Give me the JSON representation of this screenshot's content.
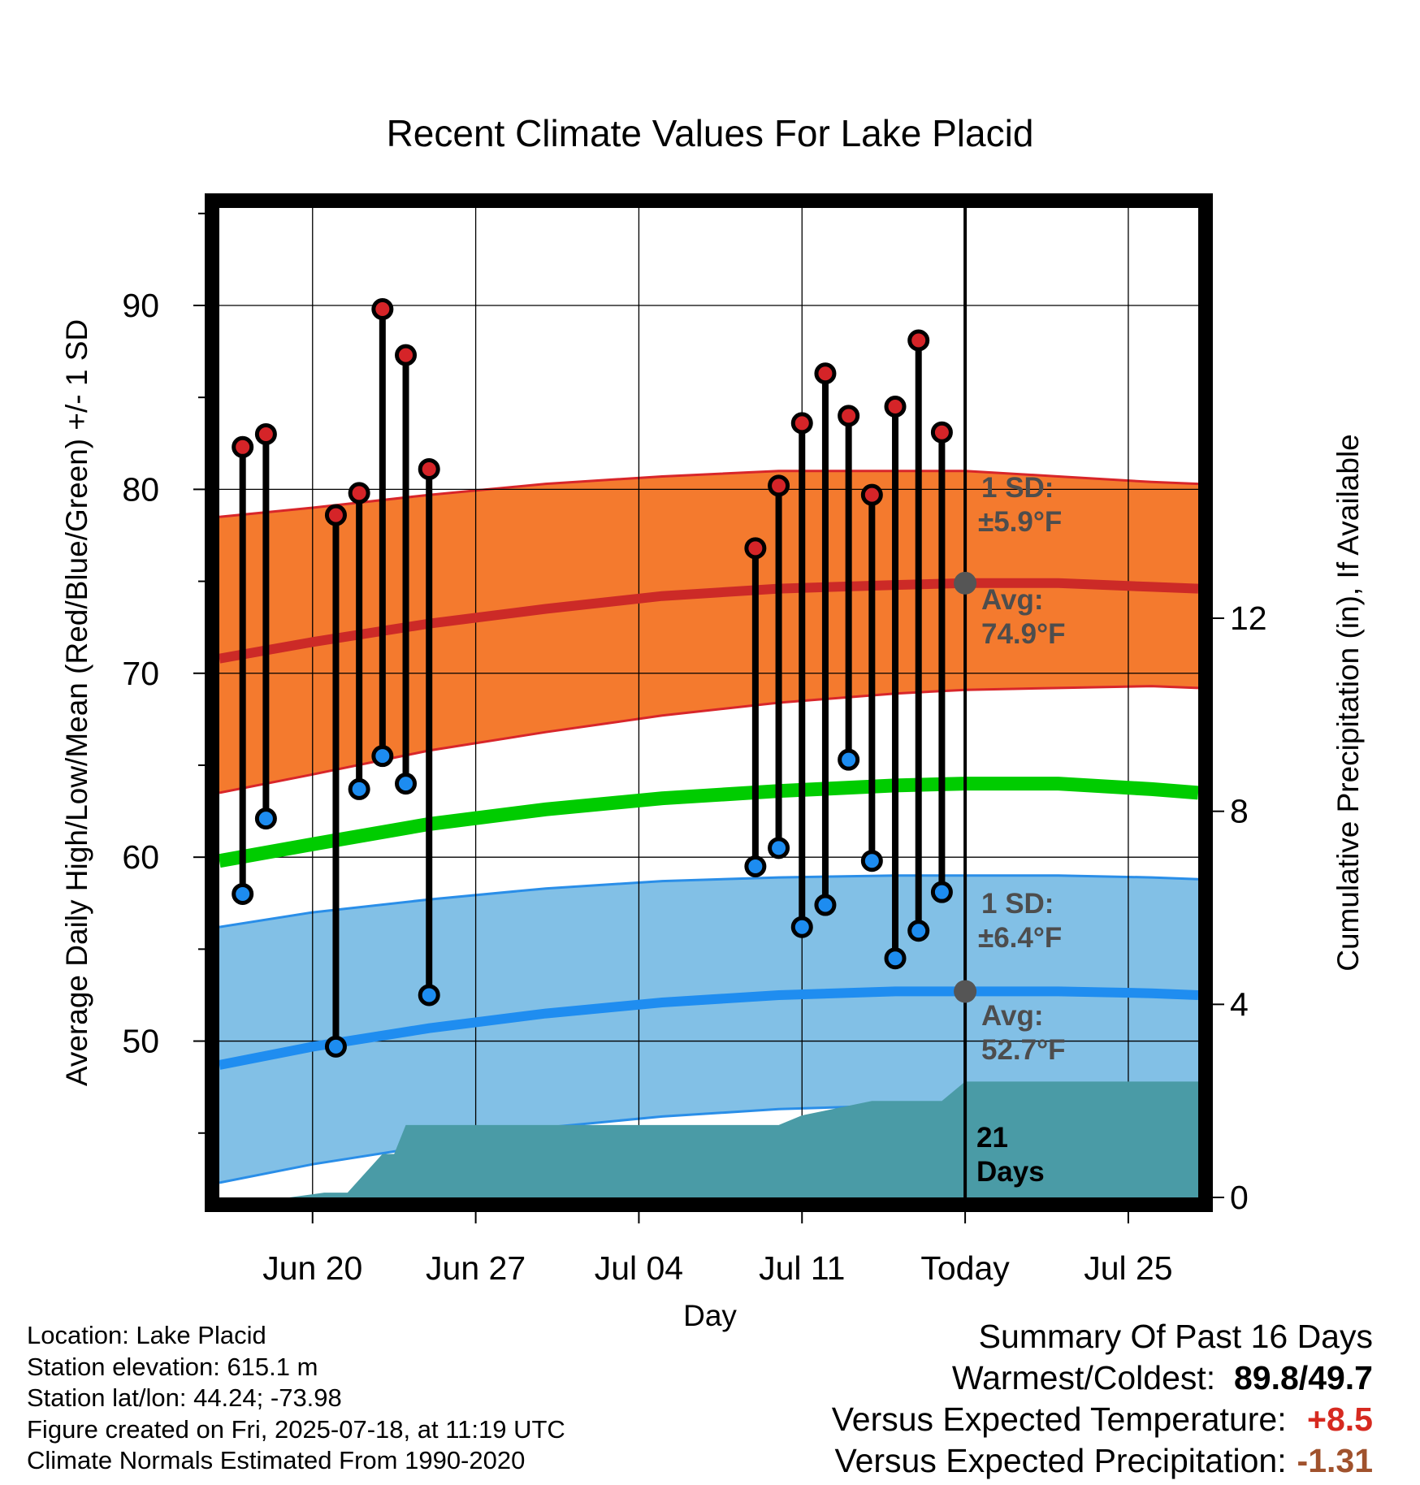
{
  "chart_data": {
    "type": "line",
    "title": "Recent Climate Values For Lake Placid",
    "xlabel": "Day",
    "ylabel": "Average Daily High/Low/Mean (Red/Blue/Green) +/- 1 SD",
    "y2label": "Cumulative Precipitation (in), If Available",
    "x_range": [
      "2025-06-16",
      "2025-07-28"
    ],
    "ylim": [
      41.5,
      95.3
    ],
    "y2lim": [
      0,
      20.5
    ],
    "yticks": [
      50,
      60,
      70,
      80,
      90
    ],
    "y2ticks": [
      0,
      4,
      8,
      12
    ],
    "grid": true,
    "xtick_labels": [
      {
        "date": "2025-06-20",
        "label": "Jun 20"
      },
      {
        "date": "2025-06-27",
        "label": "Jun 27"
      },
      {
        "date": "2025-07-04",
        "label": "Jul 04"
      },
      {
        "date": "2025-07-11",
        "label": "Jul 11"
      },
      {
        "date": "2025-07-18",
        "label": "Today"
      },
      {
        "date": "2025-07-25",
        "label": "Jul 25"
      }
    ],
    "colors": {
      "high_band": "#f47a2e",
      "high_edge": "#d8262a",
      "high_avg": "#cc2a27",
      "low_band": "#82c0e6",
      "low_edge": "#2a8ee8",
      "low_avg": "#1f8df0",
      "mean": "#00cc00",
      "precip": "#4a9ba6",
      "high_point": "#d52428",
      "low_point": "#1d8cf0",
      "today_marker": "#555555",
      "annotation": "#4d4d4d",
      "temp_anomaly": "#d62a20",
      "precip_anomaly": "#a0522d"
    },
    "normals": {
      "dates": [
        "2025-06-16",
        "2025-06-20",
        "2025-06-25",
        "2025-06-30",
        "2025-07-05",
        "2025-07-10",
        "2025-07-15",
        "2025-07-18",
        "2025-07-22",
        "2025-07-26",
        "2025-07-28"
      ],
      "avg_high": [
        70.8,
        71.7,
        72.7,
        73.5,
        74.2,
        74.6,
        74.8,
        74.9,
        74.9,
        74.7,
        74.6
      ],
      "high_plus_sd": [
        78.5,
        79.0,
        79.7,
        80.3,
        80.7,
        81.0,
        81.0,
        81.0,
        80.7,
        80.4,
        80.3
      ],
      "high_minus_sd": [
        63.5,
        64.5,
        65.8,
        66.8,
        67.7,
        68.4,
        68.9,
        69.1,
        69.2,
        69.3,
        69.2
      ],
      "avg_low": [
        48.7,
        49.7,
        50.7,
        51.5,
        52.1,
        52.5,
        52.7,
        52.7,
        52.7,
        52.6,
        52.5
      ],
      "low_plus_sd": [
        56.2,
        57.0,
        57.7,
        58.3,
        58.7,
        58.9,
        59.0,
        59.0,
        59.0,
        58.9,
        58.8
      ],
      "low_minus_sd": [
        42.3,
        43.3,
        44.3,
        45.3,
        45.9,
        46.3,
        46.5,
        46.6,
        46.6,
        46.5,
        46.5
      ],
      "mean": [
        59.8,
        60.7,
        61.8,
        62.6,
        63.2,
        63.6,
        63.9,
        64.0,
        64.0,
        63.7,
        63.5
      ]
    },
    "observations": [
      {
        "date": "2025-06-17",
        "high": 82.3,
        "low": 58.0
      },
      {
        "date": "2025-06-18",
        "high": 83.0,
        "low": 62.1
      },
      {
        "date": "2025-06-21",
        "high": 78.6,
        "low": 49.7
      },
      {
        "date": "2025-06-22",
        "high": 79.8,
        "low": 63.7
      },
      {
        "date": "2025-06-23",
        "high": 89.8,
        "low": 65.5
      },
      {
        "date": "2025-06-24",
        "high": 87.3,
        "low": 64.0
      },
      {
        "date": "2025-06-25",
        "high": 81.1,
        "low": 52.5
      },
      {
        "date": "2025-07-09",
        "high": 76.8,
        "low": 59.5
      },
      {
        "date": "2025-07-10",
        "high": 80.2,
        "low": 60.5
      },
      {
        "date": "2025-07-11",
        "high": 83.6,
        "low": 56.2
      },
      {
        "date": "2025-07-12",
        "high": 86.3,
        "low": 57.4
      },
      {
        "date": "2025-07-13",
        "high": 84.0,
        "low": 65.3
      },
      {
        "date": "2025-07-14",
        "high": 79.7,
        "low": 59.8
      },
      {
        "date": "2025-07-15",
        "high": 84.5,
        "low": 54.5
      },
      {
        "date": "2025-07-16",
        "high": 88.1,
        "low": 56.0
      },
      {
        "date": "2025-07-17",
        "high": 83.1,
        "low": 58.1
      }
    ],
    "precip_cumulative": {
      "dates": [
        "2025-06-19",
        "2025-06-20.5",
        "2025-06-21.5",
        "2025-06-23",
        "2025-06-23.5",
        "2025-06-24",
        "2025-07-08",
        "2025-07-10",
        "2025-07-11",
        "2025-07-12",
        "2025-07-14",
        "2025-07-16",
        "2025-07-17",
        "2025-07-18",
        "2025-07-28"
      ],
      "values": [
        0,
        0.1,
        0.1,
        0.9,
        0.9,
        1.5,
        1.5,
        1.5,
        1.7,
        1.8,
        2.0,
        2.0,
        2.0,
        2.4,
        2.4
      ]
    },
    "today": {
      "date": "2025-07-18",
      "avg_high": 74.9,
      "avg_low": 52.7
    },
    "annotations": {
      "high_sd_label": "1 SD:",
      "high_sd_value": "±5.9°F",
      "high_avg_label": "Avg:",
      "high_avg_value": "74.9°F",
      "low_sd_label": "1 SD:",
      "low_sd_value": "±6.4°F",
      "low_avg_label": "Avg:",
      "low_avg_value": "52.7°F",
      "precip_days_number": "21",
      "precip_days_label": "Days"
    }
  },
  "info": {
    "location": "Location: Lake Placid",
    "elevation": "Station elevation: 615.1 m",
    "latlon": "Station lat/lon: 44.24; -73.98",
    "created": "Figure created on Fri, 2025-07-18, at 11:19 UTC",
    "normals": "Climate Normals Estimated From 1990-2020"
  },
  "summary": {
    "title": "Summary Of Past 16 Days",
    "warm_cold_label": "Warmest/Coldest:",
    "warmest": "89.8",
    "separator": "/",
    "coldest": "49.7",
    "temp_label": "Versus Expected Temperature:",
    "temp_value": "+8.5",
    "precip_label": "Versus Expected Precipitation:",
    "precip_value": "-1.31"
  }
}
